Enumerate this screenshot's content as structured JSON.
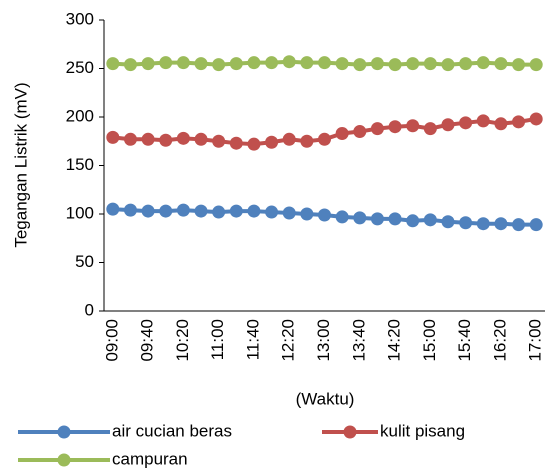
{
  "chart_data": {
    "type": "line",
    "categories": [
      "09:00",
      null,
      "09:40",
      null,
      "10:20",
      null,
      "11:00",
      null,
      "11:40",
      null,
      "12:20",
      null,
      "13:00",
      null,
      "13:40",
      null,
      "14:20",
      null,
      "15:00",
      null,
      "15:40",
      null,
      "16:20",
      null,
      "17:00"
    ],
    "series": [
      {
        "name": "air cucian beras",
        "color": "#4f81bd",
        "values": [
          105,
          104,
          103,
          103,
          104,
          103,
          102,
          103,
          103,
          102,
          101,
          100,
          99,
          97,
          96,
          95,
          95,
          93,
          94,
          92,
          91,
          90,
          90,
          89,
          89
        ]
      },
      {
        "name": "kulit pisang",
        "color": "#c0504d",
        "values": [
          179,
          177,
          177,
          176,
          178,
          177,
          175,
          173,
          172,
          174,
          177,
          175,
          177,
          183,
          185,
          188,
          190,
          191,
          188,
          192,
          194,
          196,
          193,
          195,
          198
        ]
      },
      {
        "name": "campuran",
        "color": "#9bbb59",
        "values": [
          255,
          254,
          255,
          256,
          256,
          255,
          254,
          255,
          256,
          256,
          257,
          256,
          256,
          255,
          254,
          255,
          254,
          255,
          255,
          254,
          255,
          256,
          255,
          254,
          254
        ]
      }
    ],
    "xlabel": "(Waktu)",
    "ylabel": "Tegangan Listrik (mV)",
    "ylim": [
      0,
      300
    ],
    "yticks": [
      0,
      50,
      100,
      150,
      200,
      250,
      300
    ],
    "legend": "bottom"
  }
}
